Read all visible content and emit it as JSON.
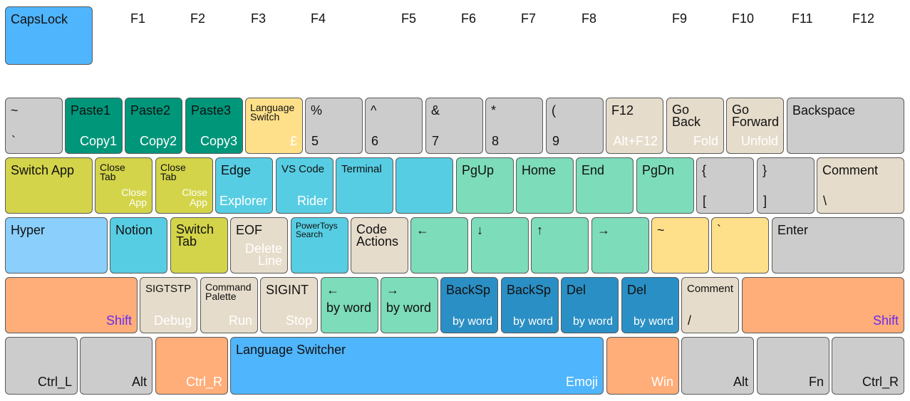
{
  "capslock": "CapsLock",
  "fkeys": [
    "F1",
    "F2",
    "F3",
    "F4",
    "F5",
    "F6",
    "F7",
    "F8",
    "F9",
    "F10",
    "F11",
    "F12"
  ],
  "row1": {
    "tilde": {
      "top": "~",
      "bottom": "`"
    },
    "paste1": {
      "top": "Paste1",
      "bottom": "Copy1"
    },
    "paste2": {
      "top": "Paste2",
      "bottom": "Copy2"
    },
    "paste3": {
      "top": "Paste3",
      "bottom": "Copy3"
    },
    "lang": {
      "top": "Language Switch",
      "bottom": "£"
    },
    "k5": {
      "top": "%",
      "bottom": "5"
    },
    "k6": {
      "top": "^",
      "bottom": "6"
    },
    "k7": {
      "top": "&",
      "bottom": "7"
    },
    "k8": {
      "top": "*",
      "bottom": "8"
    },
    "k9": {
      "top": "(",
      "bottom": "9"
    },
    "f12": {
      "top": "F12",
      "bottom": "Alt+F12"
    },
    "goback": {
      "top": "Go Back",
      "bottom": "Fold"
    },
    "gofwd": {
      "top": "Go Forward",
      "bottom": "Unfold"
    },
    "backspace": {
      "top": "Backspace"
    }
  },
  "row2": {
    "switchapp": {
      "top": "Switch App"
    },
    "closetab1": {
      "top": "Close Tab",
      "bottom": "Close App"
    },
    "closetab2": {
      "top": "Close Tab",
      "bottom": "Close App"
    },
    "edge": {
      "top": "Edge",
      "bottom": "Explorer"
    },
    "vscode": {
      "top": "VS Code",
      "bottom": "Rider"
    },
    "terminal": {
      "top": "Terminal"
    },
    "pgup": {
      "top": "PgUp"
    },
    "home": {
      "top": "Home"
    },
    "end": {
      "top": "End"
    },
    "pgdn": {
      "top": "PgDn"
    },
    "lbrace": {
      "top": "{",
      "bottom": "["
    },
    "rbrace": {
      "top": "}",
      "bottom": "]"
    },
    "comment": {
      "top": "Comment",
      "bottom": "\\"
    }
  },
  "row3": {
    "hyper": {
      "top": "Hyper"
    },
    "notion": {
      "top": "Notion"
    },
    "switchtab": {
      "top": "Switch Tab"
    },
    "eof": {
      "top": "EOF",
      "bottom": "Delete Line"
    },
    "powertoys": {
      "top": "PowerToys Search"
    },
    "codeactions": {
      "top": "Code Actions"
    },
    "left": {
      "top": "←"
    },
    "down": {
      "top": "↓"
    },
    "up": {
      "top": "↑"
    },
    "right": {
      "top": "→"
    },
    "tildekey": {
      "top": "~"
    },
    "backtick": {
      "top": "`"
    },
    "enter": {
      "top": "Enter"
    }
  },
  "row4": {
    "shiftl": {
      "bottom": "Shift"
    },
    "sigtstp": {
      "top": "SIGTSTP",
      "bottom": "Debug"
    },
    "cmdpalette": {
      "top": "Command Palette",
      "bottom": "Run"
    },
    "sigint": {
      "top": "SIGINT",
      "bottom": "Stop"
    },
    "wordleft": {
      "top": "←",
      "bottom": "by word"
    },
    "wordright": {
      "top": "→",
      "bottom": "by word"
    },
    "bs1": {
      "top": "BackSp",
      "bottom": "by word"
    },
    "bs2": {
      "top": "BackSp",
      "bottom": "by word"
    },
    "del1": {
      "top": "Del",
      "bottom": "by word"
    },
    "del2": {
      "top": "Del",
      "bottom": "by word"
    },
    "comment2": {
      "top": "Comment",
      "bottom": "/"
    },
    "shiftr": {
      "bottom": "Shift"
    }
  },
  "row5": {
    "ctrll": {
      "bottom": "Ctrl_L"
    },
    "alt1": {
      "bottom": "Alt"
    },
    "ctrlr": {
      "bottom": "Ctrl_R"
    },
    "space": {
      "top": "Language Switcher",
      "bottom": "Emoji"
    },
    "win": {
      "bottom": "Win"
    },
    "alt2": {
      "bottom": "Alt"
    },
    "fn": {
      "bottom": "Fn"
    },
    "ctrlr2": {
      "bottom": "Ctrl_R"
    }
  },
  "colors": {
    "gray": "#cccccc",
    "green": "#00967a",
    "yellow": "#ffe08a",
    "beige": "#e6dccb",
    "olive": "#d3d44a",
    "cyan": "#57cde3",
    "mint": "#7ddcba",
    "light_blue": "#8bcffc",
    "blue": "#4fb5fc",
    "dark_blue": "#2a8fc4",
    "orange": "#ffad79",
    "shift_label": "#6a2cf0"
  }
}
